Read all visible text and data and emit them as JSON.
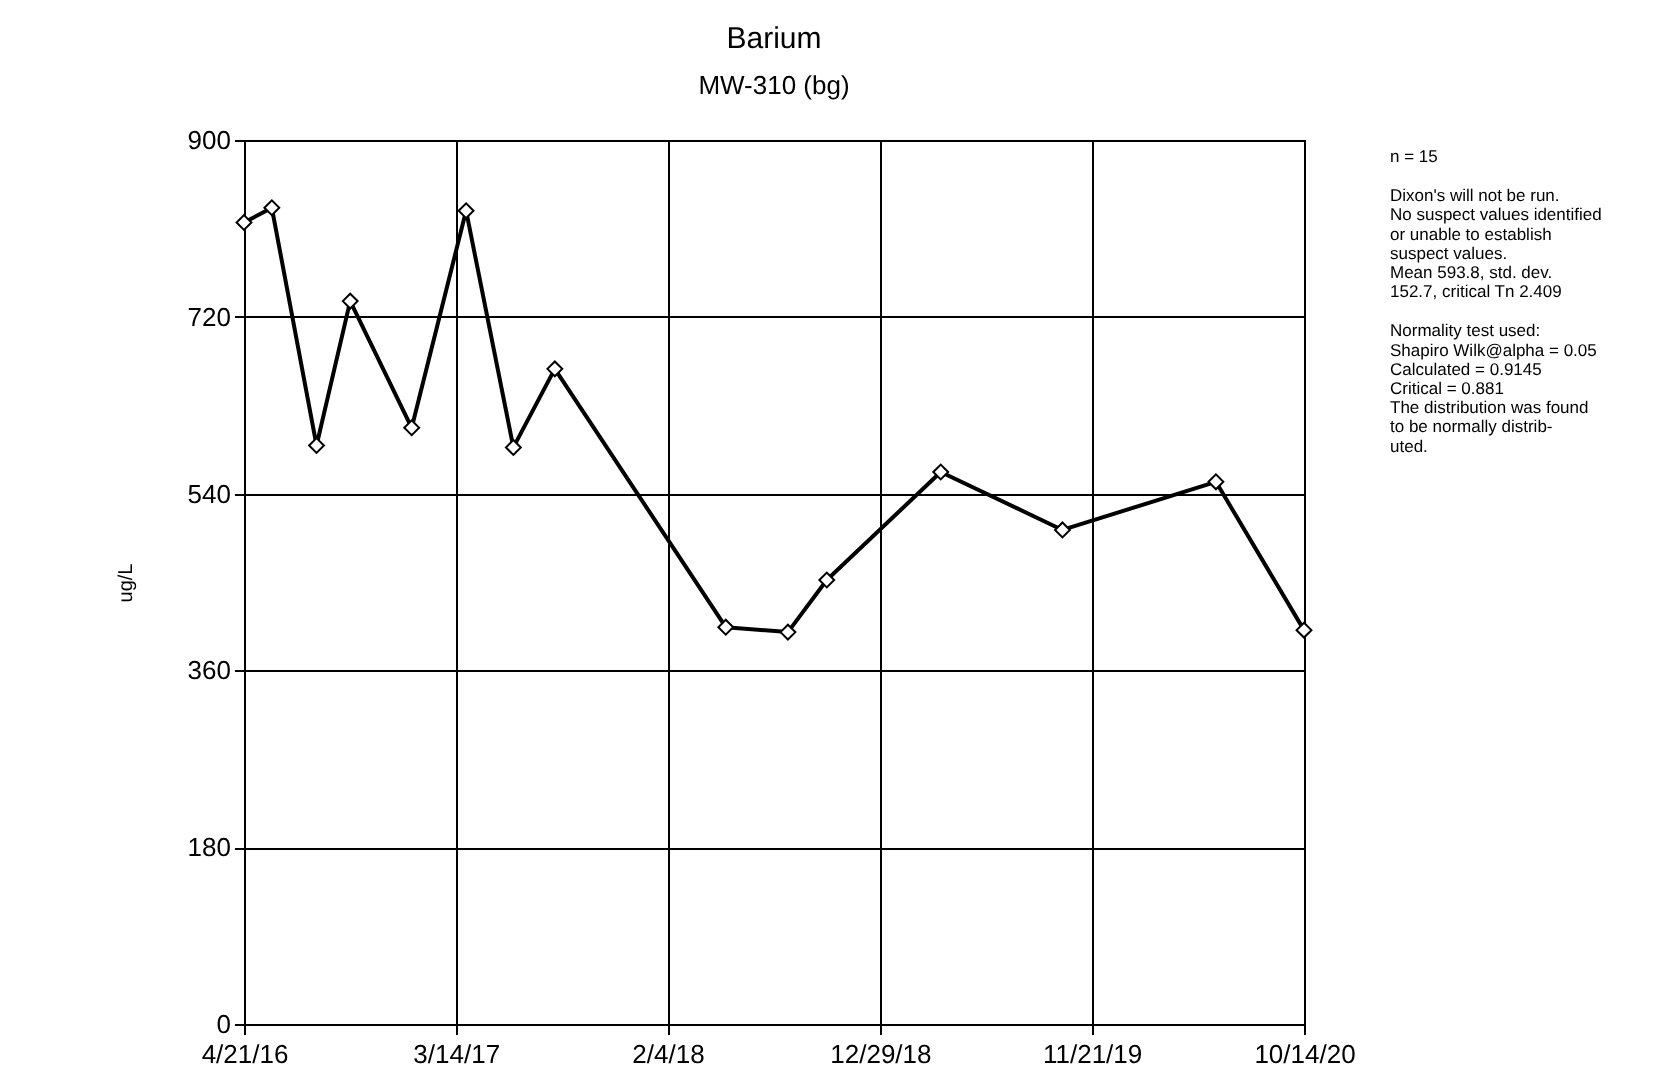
{
  "chart_data": {
    "type": "line",
    "title": "Barium",
    "subtitle": "MW-310 (bg)",
    "ylabel": "ug/L",
    "x": [
      "2016-04-21",
      "2016-06-03",
      "2016-08-11",
      "2016-10-02",
      "2017-01-05",
      "2017-03-30",
      "2017-06-11",
      "2017-08-14",
      "2018-05-05",
      "2018-08-09",
      "2018-10-08",
      "2019-04-02",
      "2019-10-07",
      "2020-05-31",
      "2020-10-14"
    ],
    "series": [
      {
        "color": "#000000",
        "values": [
          816,
          831,
          589,
          736,
          607,
          828,
          587,
          667,
          404,
          399,
          452,
          562,
          503,
          552,
          401
        ]
      }
    ],
    "xlim": [
      "2016-04-21",
      "2020-10-14"
    ],
    "xticks": [
      {
        "value": "2016-04-21",
        "label": "4/21/16"
      },
      {
        "value": "2017-03-14",
        "label": "3/14/17"
      },
      {
        "value": "2018-02-04",
        "label": "2/4/18"
      },
      {
        "value": "2018-12-29",
        "label": "12/29/18"
      },
      {
        "value": "2019-11-21",
        "label": "11/21/19"
      },
      {
        "value": "2020-10-14",
        "label": "10/14/20"
      }
    ],
    "ylim": [
      0,
      900
    ],
    "yticks": [
      0,
      180,
      360,
      540,
      720,
      900
    ],
    "grid": true,
    "marker": "diamond",
    "line_style": "solid",
    "annotations": [
      "n = 15",
      "Dixon's will not be run.\nNo suspect values identified\nor unable to establish\nsuspect values.\nMean 593.8, std. dev.\n152.7, critical Tn 2.409",
      "Normality test used:\nShapiro Wilk@alpha = 0.05\nCalculated = 0.9145\nCritical = 0.881\nThe distribution was found\nto be normally distrib-\nuted."
    ]
  }
}
